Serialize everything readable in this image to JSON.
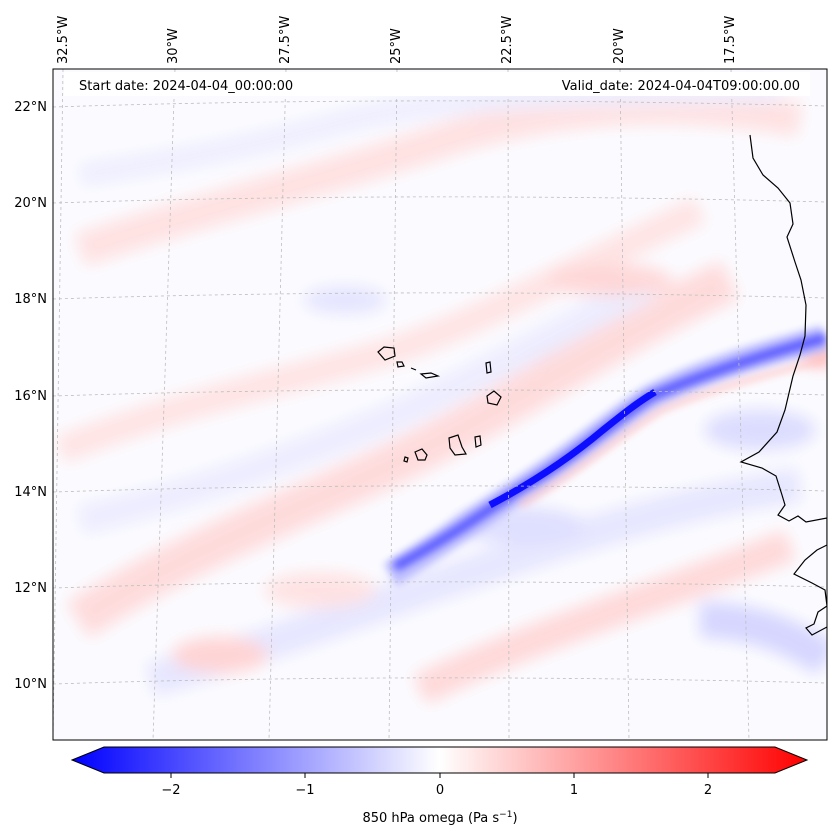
{
  "map": {
    "lon_labels": [
      "32.5°W",
      "30°W",
      "27.5°W",
      "25°W",
      "22.5°W",
      "20°W",
      "17.5°W"
    ],
    "lat_labels": [
      "22°N",
      "20°N",
      "18°N",
      "16°N",
      "14°N",
      "12°N",
      "10°N"
    ],
    "start_date_label": "Start date: 2024-04-04_00:00:00",
    "valid_date_label": "Valid_date: 2024-04-04T09:00:00.00",
    "field": "850 hPa omega",
    "colormap": "bwr",
    "colors": {
      "strong_negative": "#0000ff",
      "negative": "#6f6fff",
      "neutral": "#ffffff",
      "positive": "#ffb1b1",
      "strong_positive": "#ff0000",
      "coastline": "#000000",
      "gridline": "#bdbdbd"
    }
  },
  "colorbar": {
    "tick_labels": [
      "−2",
      "−1",
      "0",
      "1",
      "2"
    ],
    "label_main": "850 hPa omega (Pa s",
    "label_exp": "−1",
    "label_close": ")",
    "min": -2.6,
    "max": 2.6
  }
}
